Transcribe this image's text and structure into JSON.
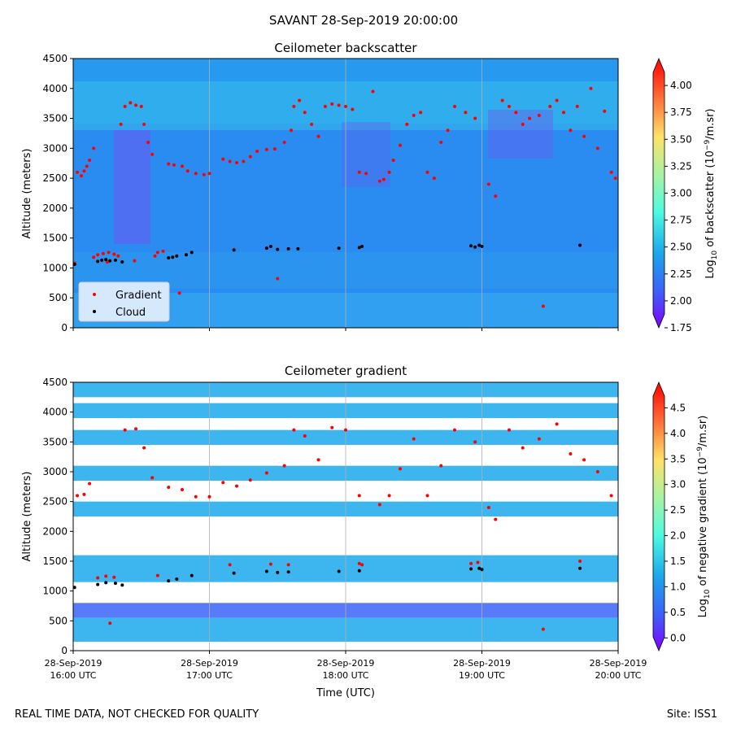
{
  "figure": {
    "title": "SAVANT 28-Sep-2019 20:00:00",
    "footer_left": "REAL TIME DATA, NOT CHECKED FOR QUALITY",
    "footer_right": "Site: ISS1"
  },
  "colors": {
    "marker_gradient": "#ff0000",
    "marker_cloud": "#000000",
    "grid": "#b0b0b0",
    "colormap": [
      "#7f00ff",
      "#3a64f8",
      "#1ba8ec",
      "#4dfbe0",
      "#a7f3a1",
      "#ffe266",
      "#ff6a36",
      "#ff0000"
    ]
  },
  "chart_data": [
    {
      "type": "heatmap",
      "title": "Ceilometer backscatter",
      "ylabel": "Altitude (meters)",
      "ylim": [
        0,
        4500
      ],
      "yticks": [
        0,
        500,
        1000,
        1500,
        2000,
        2500,
        3000,
        3500,
        4000,
        4500
      ],
      "xlim_hours_utc": [
        16,
        20
      ],
      "grid_x": [
        17,
        18,
        19
      ],
      "colorbar": {
        "label": "Log10 of backscatter (10^-9/m.sr)",
        "label_main": "Log",
        "label_sub": "10",
        "label_mid": " of backscatter (10",
        "label_sup": "−9",
        "label_end": "/m.sr)",
        "range": [
          1.75,
          4.25
        ],
        "ticks": [
          "1.75",
          "2.00",
          "2.25",
          "2.50",
          "2.75",
          "3.00",
          "3.25",
          "3.50",
          "3.75",
          "4.00"
        ]
      },
      "legend": {
        "location": "lower-left",
        "entries": [
          {
            "name": "Gradient",
            "color": "#ff0000"
          },
          {
            "name": "Cloud",
            "color": "#000000"
          }
        ]
      },
      "series": [
        {
          "name": "Gradient",
          "points": [
            [
              16.01,
              1080
            ],
            [
              16.03,
              2600
            ],
            [
              16.06,
              2540
            ],
            [
              16.08,
              2620
            ],
            [
              16.1,
              2700
            ],
            [
              16.12,
              2800
            ],
            [
              16.15,
              3000
            ],
            [
              16.18,
              1220
            ],
            [
              16.22,
              1240
            ],
            [
              16.26,
              1260
            ],
            [
              16.3,
              1230
            ],
            [
              16.33,
              1200
            ],
            [
              16.35,
              3400
            ],
            [
              16.38,
              3700
            ],
            [
              16.42,
              3760
            ],
            [
              16.46,
              3720
            ],
            [
              16.5,
              3700
            ],
            [
              16.52,
              3400
            ],
            [
              16.55,
              3100
            ],
            [
              16.58,
              2900
            ],
            [
              16.6,
              1200
            ],
            [
              16.62,
              1260
            ],
            [
              16.66,
              1280
            ],
            [
              16.7,
              2740
            ],
            [
              16.74,
              2720
            ],
            [
              16.8,
              2700
            ],
            [
              16.84,
              2620
            ],
            [
              16.9,
              2580
            ],
            [
              16.96,
              2560
            ],
            [
              17.0,
              2580
            ],
            [
              17.1,
              2820
            ],
            [
              17.15,
              2780
            ],
            [
              17.2,
              2760
            ],
            [
              17.25,
              2780
            ],
            [
              17.3,
              2860
            ],
            [
              17.35,
              2950
            ],
            [
              17.42,
              2980
            ],
            [
              17.48,
              2990
            ],
            [
              17.55,
              3100
            ],
            [
              17.6,
              3300
            ],
            [
              17.62,
              3700
            ],
            [
              17.66,
              3800
            ],
            [
              17.7,
              3600
            ],
            [
              17.75,
              3400
            ],
            [
              17.8,
              3200
            ],
            [
              17.85,
              3700
            ],
            [
              17.9,
              3740
            ],
            [
              17.95,
              3720
            ],
            [
              18.0,
              3700
            ],
            [
              18.05,
              3650
            ],
            [
              18.1,
              2600
            ],
            [
              18.15,
              2580
            ],
            [
              18.2,
              3950
            ],
            [
              18.25,
              2450
            ],
            [
              18.28,
              2480
            ],
            [
              18.32,
              2600
            ],
            [
              18.35,
              2800
            ],
            [
              18.4,
              3050
            ],
            [
              18.45,
              3400
            ],
            [
              18.5,
              3550
            ],
            [
              18.55,
              3600
            ],
            [
              18.6,
              2600
            ],
            [
              18.65,
              2500
            ],
            [
              18.7,
              3100
            ],
            [
              18.75,
              3300
            ],
            [
              18.8,
              3700
            ],
            [
              18.88,
              3600
            ],
            [
              18.95,
              3500
            ],
            [
              19.05,
              2400
            ],
            [
              19.1,
              2200
            ],
            [
              19.15,
              3800
            ],
            [
              19.2,
              3700
            ],
            [
              19.25,
              3600
            ],
            [
              19.3,
              3400
            ],
            [
              19.35,
              3500
            ],
            [
              19.42,
              3550
            ],
            [
              19.5,
              3700
            ],
            [
              19.55,
              3800
            ],
            [
              19.6,
              3600
            ],
            [
              19.65,
              3300
            ],
            [
              19.7,
              3700
            ],
            [
              19.75,
              3200
            ],
            [
              19.8,
              4000
            ],
            [
              19.85,
              3000
            ],
            [
              19.9,
              3620
            ],
            [
              19.95,
              2600
            ],
            [
              19.98,
              2500
            ],
            [
              16.15,
              1180
            ],
            [
              16.25,
              1100
            ],
            [
              16.45,
              1120
            ],
            [
              16.78,
              580
            ],
            [
              17.5,
              820
            ],
            [
              19.45,
              360
            ]
          ]
        },
        {
          "name": "Cloud",
          "points": [
            [
              16.01,
              1060
            ],
            [
              16.18,
              1110
            ],
            [
              16.21,
              1130
            ],
            [
              16.24,
              1140
            ],
            [
              16.27,
              1120
            ],
            [
              16.31,
              1130
            ],
            [
              16.36,
              1100
            ],
            [
              16.7,
              1170
            ],
            [
              16.73,
              1180
            ],
            [
              16.76,
              1200
            ],
            [
              16.83,
              1220
            ],
            [
              16.87,
              1260
            ],
            [
              17.18,
              1300
            ],
            [
              17.42,
              1330
            ],
            [
              17.45,
              1360
            ],
            [
              17.5,
              1310
            ],
            [
              17.58,
              1320
            ],
            [
              17.65,
              1320
            ],
            [
              17.95,
              1330
            ],
            [
              18.1,
              1340
            ],
            [
              18.12,
              1360
            ],
            [
              18.92,
              1370
            ],
            [
              18.95,
              1350
            ],
            [
              18.98,
              1380
            ],
            [
              19.0,
              1360
            ],
            [
              19.72,
              1380
            ]
          ]
        }
      ]
    },
    {
      "type": "heatmap",
      "title": "Ceilometer gradient",
      "xlabel": "Time (UTC)",
      "ylabel": "Altitude (meters)",
      "ylim": [
        0,
        4500
      ],
      "yticks": [
        0,
        500,
        1000,
        1500,
        2000,
        2500,
        3000,
        3500,
        4000,
        4500
      ],
      "xlim_hours_utc": [
        16,
        20
      ],
      "grid_x": [
        17,
        18,
        19
      ],
      "xticks": [
        {
          "hour": 16,
          "date": "28-Sep-2019",
          "time": "16:00 UTC"
        },
        {
          "hour": 17,
          "date": "28-Sep-2019",
          "time": "17:00 UTC"
        },
        {
          "hour": 18,
          "date": "28-Sep-2019",
          "time": "18:00 UTC"
        },
        {
          "hour": 19,
          "date": "28-Sep-2019",
          "time": "19:00 UTC"
        },
        {
          "hour": 20,
          "date": "28-Sep-2019",
          "time": "20:00 UTC"
        }
      ],
      "colorbar": {
        "label": "Log10 of negative gradient (10^-9/m.sr)",
        "label_main": "Log",
        "label_sub": "10",
        "label_mid": " of negative gradient (10",
        "label_sup": "−9",
        "label_end": "/m.sr)",
        "range": [
          -0.25,
          5.0
        ],
        "ticks": [
          "0.0",
          "0.5",
          "1.0",
          "1.5",
          "2.0",
          "2.5",
          "3.0",
          "3.5",
          "4.0",
          "4.5"
        ]
      },
      "bands": [
        {
          "y0": 1150,
          "y1": 1600,
          "level": 1.6
        },
        {
          "y0": 550,
          "y1": 800,
          "level": 0.6
        },
        {
          "y0": 150,
          "y1": 550,
          "level": 1.1
        },
        {
          "y0": 2250,
          "y1": 2500,
          "level": 1.4
        },
        {
          "y0": 2850,
          "y1": 3100,
          "level": 1.5
        },
        {
          "y0": 3450,
          "y1": 3700,
          "level": 1.5
        },
        {
          "y0": 3900,
          "y1": 4150,
          "level": 1.6
        },
        {
          "y0": 4250,
          "y1": 4500,
          "level": 1.6
        }
      ],
      "series": [
        {
          "name": "Gradient",
          "points": [
            [
              16.03,
              2600
            ],
            [
              16.08,
              2620
            ],
            [
              16.12,
              2800
            ],
            [
              16.18,
              1220
            ],
            [
              16.24,
              1250
            ],
            [
              16.3,
              1230
            ],
            [
              16.38,
              3700
            ],
            [
              16.46,
              3720
            ],
            [
              16.52,
              3400
            ],
            [
              16.58,
              2900
            ],
            [
              16.62,
              1260
            ],
            [
              16.7,
              2740
            ],
            [
              16.8,
              2700
            ],
            [
              16.9,
              2580
            ],
            [
              17.0,
              2580
            ],
            [
              17.1,
              2820
            ],
            [
              17.2,
              2760
            ],
            [
              17.3,
              2860
            ],
            [
              17.42,
              2980
            ],
            [
              17.55,
              3100
            ],
            [
              17.62,
              3700
            ],
            [
              17.7,
              3600
            ],
            [
              17.8,
              3200
            ],
            [
              17.9,
              3740
            ],
            [
              18.0,
              3700
            ],
            [
              18.1,
              2600
            ],
            [
              18.25,
              2450
            ],
            [
              18.32,
              2600
            ],
            [
              18.4,
              3050
            ],
            [
              18.5,
              3550
            ],
            [
              18.6,
              2600
            ],
            [
              18.7,
              3100
            ],
            [
              18.8,
              3700
            ],
            [
              18.95,
              3500
            ],
            [
              19.05,
              2400
            ],
            [
              19.1,
              2200
            ],
            [
              19.2,
              3700
            ],
            [
              19.3,
              3400
            ],
            [
              19.42,
              3550
            ],
            [
              19.55,
              3800
            ],
            [
              19.65,
              3300
            ],
            [
              19.75,
              3200
            ],
            [
              19.85,
              3000
            ],
            [
              19.95,
              2600
            ],
            [
              17.15,
              1440
            ],
            [
              17.45,
              1450
            ],
            [
              17.58,
              1440
            ],
            [
              18.1,
              1460
            ],
            [
              18.12,
              1440
            ],
            [
              18.92,
              1460
            ],
            [
              18.97,
              1480
            ],
            [
              19.72,
              1500
            ],
            [
              16.27,
              460
            ],
            [
              19.45,
              360
            ]
          ]
        },
        {
          "name": "Cloud",
          "points": [
            [
              16.01,
              1060
            ],
            [
              16.18,
              1110
            ],
            [
              16.24,
              1140
            ],
            [
              16.31,
              1130
            ],
            [
              16.36,
              1100
            ],
            [
              16.7,
              1170
            ],
            [
              16.76,
              1200
            ],
            [
              16.87,
              1260
            ],
            [
              17.18,
              1300
            ],
            [
              17.42,
              1330
            ],
            [
              17.5,
              1310
            ],
            [
              17.58,
              1320
            ],
            [
              17.95,
              1330
            ],
            [
              18.1,
              1340
            ],
            [
              18.92,
              1370
            ],
            [
              18.98,
              1380
            ],
            [
              19.0,
              1360
            ],
            [
              19.72,
              1380
            ]
          ]
        }
      ]
    }
  ]
}
